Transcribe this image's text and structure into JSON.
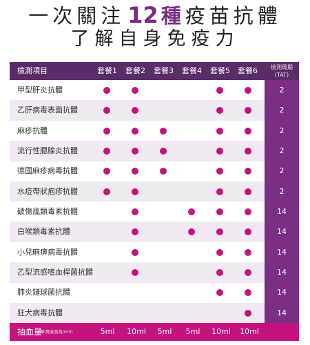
{
  "title": {
    "line1_pre": "一次關注",
    "line1_num": "12",
    "line1_em": "種",
    "line1_post": "疫苗抗體",
    "line2": "了解自身免疫力"
  },
  "table": {
    "header": {
      "item": "檢測項目",
      "packages": [
        "套餐1",
        "套餐2",
        "套餐3",
        "套餐4",
        "套餐5",
        "套餐6"
      ],
      "tat_line1": "檢測周期",
      "tat_line2": "(TAT)"
    },
    "rows": [
      {
        "name": "甲型肝炎抗體",
        "marks": [
          1,
          1,
          0,
          0,
          1,
          1
        ],
        "tat": "2"
      },
      {
        "name": "乙肝病毒表面抗體",
        "marks": [
          1,
          1,
          0,
          0,
          1,
          1
        ],
        "tat": "2"
      },
      {
        "name": "麻疹抗體",
        "marks": [
          1,
          1,
          1,
          0,
          1,
          1
        ],
        "tat": "2"
      },
      {
        "name": "流行性腮腺炎抗體",
        "marks": [
          1,
          1,
          1,
          0,
          1,
          1
        ],
        "tat": "2"
      },
      {
        "name": "德國麻疹病毒抗體",
        "marks": [
          1,
          1,
          1,
          0,
          1,
          1
        ],
        "tat": "2"
      },
      {
        "name": "水痘帶狀疱疹抗體",
        "marks": [
          1,
          1,
          0,
          0,
          1,
          1
        ],
        "tat": "2"
      },
      {
        "name": "破傷風類毒素抗體",
        "marks": [
          0,
          1,
          0,
          1,
          1,
          1
        ],
        "tat": "14"
      },
      {
        "name": "白喉類毒素抗體",
        "marks": [
          0,
          1,
          0,
          1,
          1,
          1
        ],
        "tat": "14"
      },
      {
        "name": "小兒麻痹病毒抗體",
        "marks": [
          0,
          1,
          0,
          0,
          1,
          1
        ],
        "tat": "14"
      },
      {
        "name": "乙型流感嗜血桿菌抗體",
        "marks": [
          0,
          1,
          0,
          0,
          1,
          1
        ],
        "tat": "14"
      },
      {
        "name": "肺炎鏈球菌抗體",
        "marks": [
          0,
          0,
          0,
          0,
          1,
          1
        ],
        "tat": "14"
      },
      {
        "name": "狂犬病毒抗體",
        "marks": [
          0,
          0,
          0,
          0,
          0,
          1
        ],
        "tat": "14"
      }
    ],
    "footer": {
      "label": "抽血量",
      "note": "(華潤檢測為3ml)",
      "volumes": [
        "5ml",
        "10ml",
        "5ml",
        "5ml",
        "10ml",
        "10ml"
      ]
    },
    "colors": {
      "header_bg": "#5a2c68",
      "tat_bg": "#7a2f85",
      "dot": "#c4137f",
      "footer_bg": "#c4137f",
      "alt_row": "#f1eaf2"
    }
  }
}
